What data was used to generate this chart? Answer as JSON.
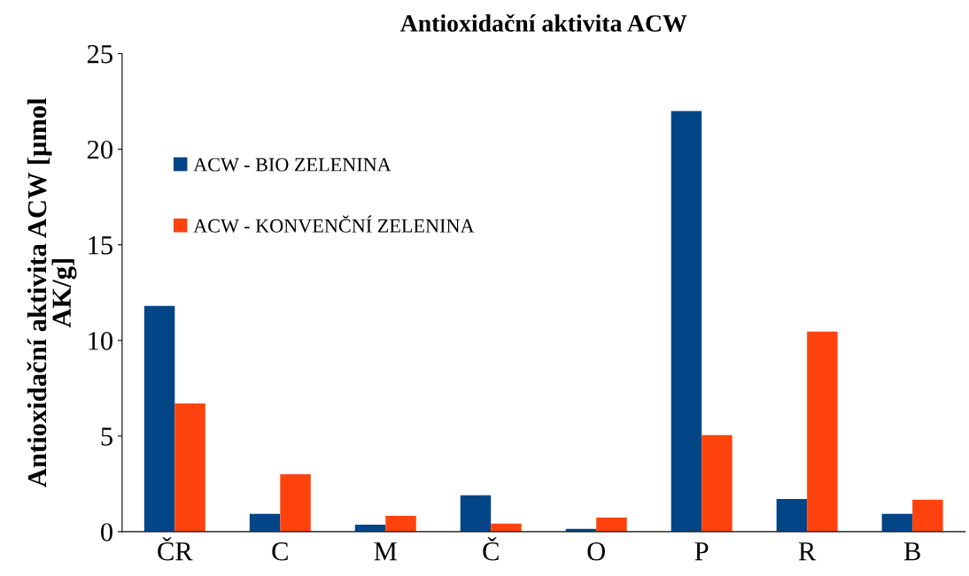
{
  "chart_data": {
    "type": "bar",
    "title": "Antioxidační aktivita ACW",
    "ylabel": "Antioxidační aktivita ACW [µmol AK/g]",
    "categories": [
      "ČR",
      "C",
      "M",
      "Č",
      "O",
      "P",
      "R",
      "B"
    ],
    "series": [
      {
        "name": "ACW - BIO ZELENINA",
        "color": "#004586",
        "values": [
          11.8,
          0.93,
          0.37,
          1.9,
          0.14,
          22.0,
          1.71,
          0.93
        ]
      },
      {
        "name": "ACW - KONVENČNÍ ZELENINA",
        "color": "#ff420e",
        "values": [
          6.7,
          3.0,
          0.83,
          0.42,
          0.74,
          5.05,
          10.46,
          1.67
        ]
      }
    ],
    "ylim": [
      0,
      25
    ],
    "yticks": [
      0,
      5,
      10,
      15,
      20,
      25
    ],
    "grid": false,
    "legend": "top left"
  }
}
